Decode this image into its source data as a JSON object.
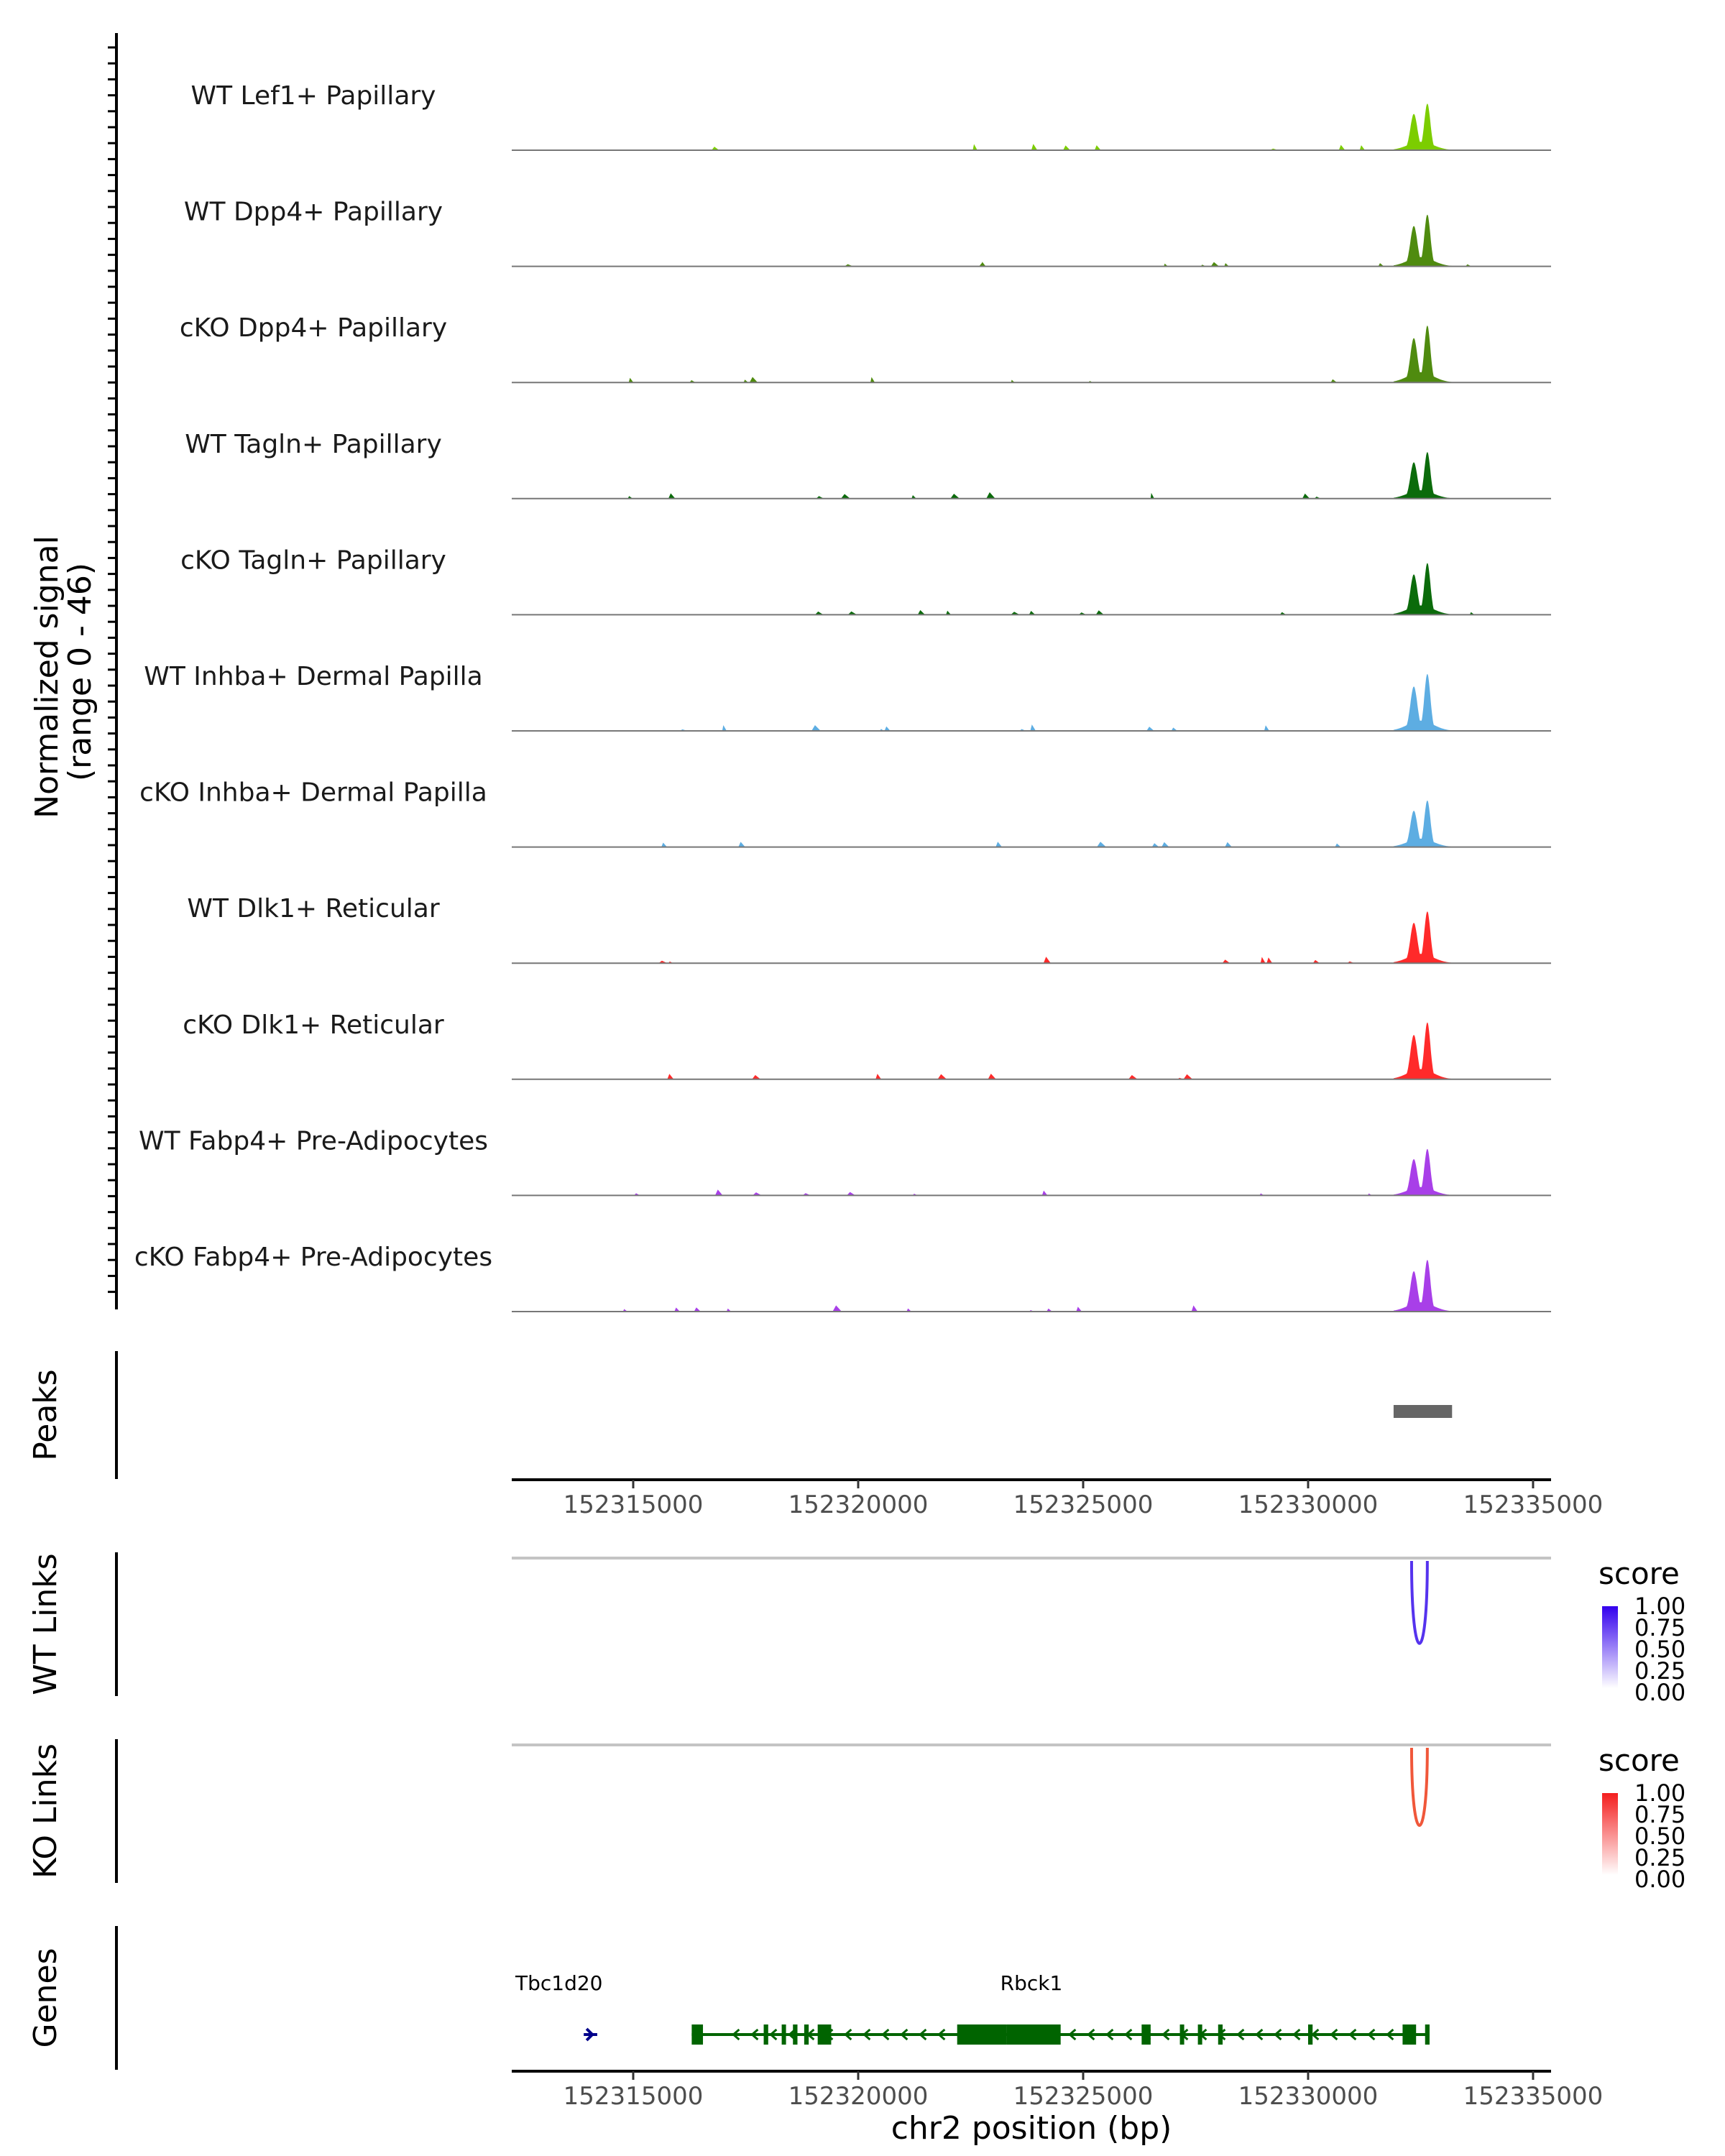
{
  "chart_data": {
    "type": "area",
    "chromosome": "chr2",
    "xlabel": "chr2 position (bp)",
    "xlim": [
      152312300,
      152335400
    ],
    "xticks": [
      152315000,
      152320000,
      152325000,
      152330000,
      152335000
    ],
    "xtick_labels": [
      "152315000",
      "152320000",
      "152325000",
      "152330000",
      "152335000"
    ],
    "ylabel_line1": "Normalized signal",
    "ylabel_line2": "(range 0 - 46)",
    "ylim": [
      0,
      46
    ],
    "tracks": [
      {
        "name": "WT Lef1+ Papillary",
        "color": "#7CCD00"
      },
      {
        "name": "WT Dpp4+ Papillary",
        "color": "#4F8B0F"
      },
      {
        "name": "cKO Dpp4+ Papillary",
        "color": "#4F8B0F"
      },
      {
        "name": "WT Tagln+ Papillary",
        "color": "#0B6B0B"
      },
      {
        "name": "cKO Tagln+ Papillary",
        "color": "#0B6B0B"
      },
      {
        "name": "WT Inhba+ Dermal Papilla",
        "color": "#5DADE2"
      },
      {
        "name": "cKO Inhba+ Dermal Papilla",
        "color": "#5DADE2"
      },
      {
        "name": "WT Dlk1+ Reticular",
        "color": "#FF2A2A"
      },
      {
        "name": "cKO Dlk1+ Reticular",
        "color": "#FF2A2A"
      },
      {
        "name": "WT Fabp4+ Pre-Adipocytes",
        "color": "#A83FE8"
      },
      {
        "name": "cKO Fabp4+ Pre-Adipocytes",
        "color": "#A83FE8"
      }
    ],
    "main_peak": {
      "start": 152331900,
      "end": 152333200,
      "summits": [
        152332350,
        152332650
      ]
    },
    "peaks": {
      "label": "Peaks",
      "regions": [
        {
          "start": 152331900,
          "end": 152333200
        }
      ],
      "color": "#666666"
    },
    "wt_links": {
      "label": "WT Links",
      "legend_title": "score",
      "legend_values": [
        "1.00",
        "0.75",
        "0.50",
        "0.25",
        "0.00"
      ],
      "color": "#5533EE",
      "links": [
        {
          "start": 152332300,
          "end": 152332650,
          "score": 0.85
        }
      ]
    },
    "ko_links": {
      "label": "KO Links",
      "legend_title": "score",
      "legend_values": [
        "1.00",
        "0.75",
        "0.50",
        "0.25",
        "0.00"
      ],
      "color": "#F0573A",
      "links": [
        {
          "start": 152332300,
          "end": 152332650,
          "score": 0.8
        }
      ]
    },
    "genes": {
      "label": "Genes",
      "items": [
        {
          "name": "Tbc1d20",
          "start": 152313900,
          "end": 152314200,
          "strand": "+",
          "color": "#00008B"
        },
        {
          "name": "Rbck1",
          "start": 152316300,
          "end": 152332700,
          "strand": "-",
          "color": "#006400"
        }
      ]
    }
  }
}
